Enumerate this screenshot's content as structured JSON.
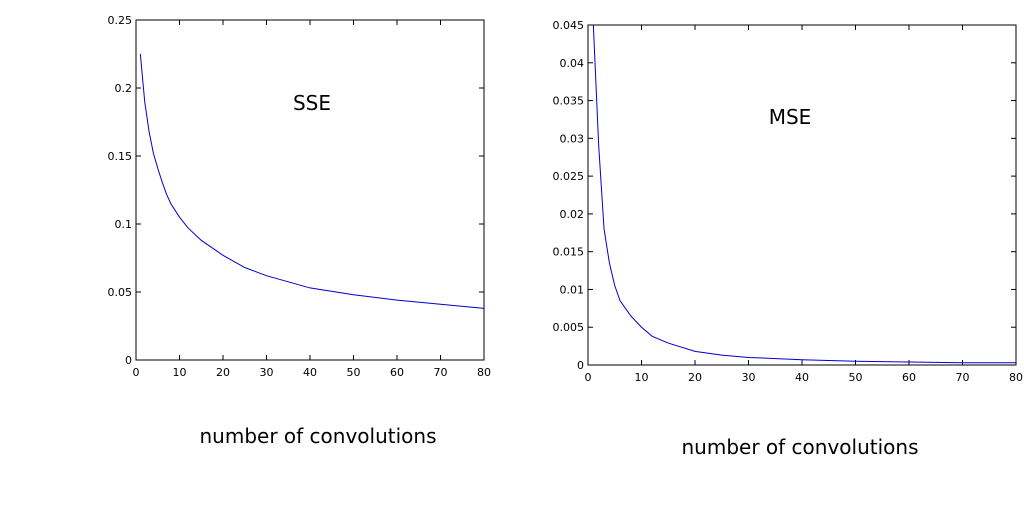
{
  "chart_data": [
    {
      "type": "line",
      "title": "SSE",
      "xlabel": "number of convolutions",
      "ylabel": "",
      "xlim": [
        0,
        80
      ],
      "ylim": [
        0,
        0.25
      ],
      "xticks": [
        0,
        10,
        20,
        30,
        40,
        50,
        60,
        70,
        80
      ],
      "xtick_labels": [
        "0",
        "10",
        "20",
        "30",
        "40",
        "50",
        "60",
        "70",
        "80"
      ],
      "yticks": [
        0,
        0.05,
        0.1,
        0.15,
        0.2,
        0.25
      ],
      "ytick_labels": [
        "0",
        "0.05",
        "0.1",
        "0.15",
        "0.2",
        "0.25"
      ],
      "grid": false,
      "line_color": "#0000cc",
      "series": [
        {
          "x": [
            1,
            2,
            3,
            4,
            5,
            6,
            7,
            8,
            10,
            12,
            15,
            20,
            25,
            30,
            40,
            50,
            60,
            70,
            80
          ],
          "values": [
            0.225,
            0.19,
            0.168,
            0.152,
            0.141,
            0.131,
            0.122,
            0.115,
            0.105,
            0.097,
            0.088,
            0.077,
            0.068,
            0.062,
            0.053,
            0.048,
            0.044,
            0.041,
            0.038
          ]
        }
      ]
    },
    {
      "type": "line",
      "title": "MSE",
      "xlabel": "number of convolutions",
      "ylabel": "",
      "xlim": [
        0,
        80
      ],
      "ylim": [
        0,
        0.045
      ],
      "xticks": [
        0,
        10,
        20,
        30,
        40,
        50,
        60,
        70,
        80
      ],
      "xtick_labels": [
        "0",
        "10",
        "20",
        "30",
        "40",
        "50",
        "60",
        "70",
        "80"
      ],
      "yticks": [
        0,
        0.005,
        0.01,
        0.015,
        0.02,
        0.025,
        0.03,
        0.035,
        0.04,
        0.045
      ],
      "ytick_labels": [
        "0",
        "0.005",
        "0.01",
        "0.015",
        "0.02",
        "0.025",
        "0.03",
        "0.035",
        "0.04",
        "0.045"
      ],
      "grid": false,
      "line_color": "#0000cc",
      "series": [
        {
          "x": [
            1,
            2,
            3,
            4,
            5,
            6,
            8,
            10,
            12,
            15,
            20,
            25,
            30,
            40,
            50,
            60,
            70,
            80
          ],
          "values": [
            0.045,
            0.029,
            0.018,
            0.0135,
            0.0105,
            0.0085,
            0.0065,
            0.005,
            0.0038,
            0.0029,
            0.0018,
            0.0013,
            0.001,
            0.0007,
            0.0005,
            0.0004,
            0.0003,
            0.0003
          ]
        }
      ]
    }
  ]
}
